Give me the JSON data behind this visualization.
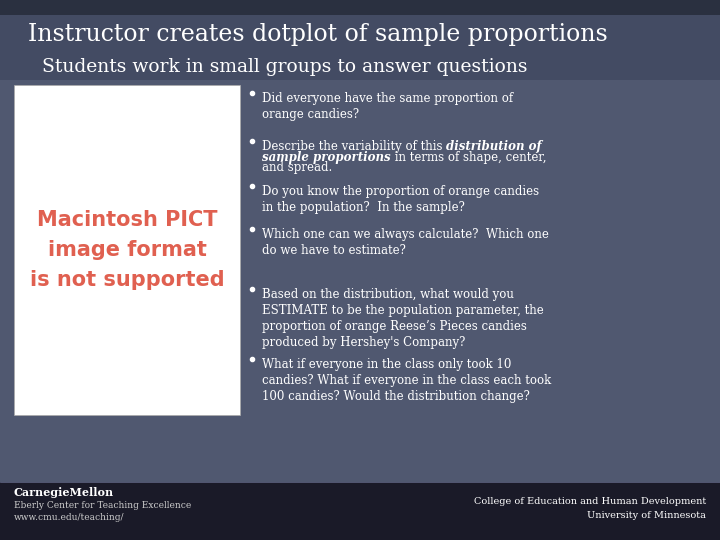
{
  "title": "Instructor creates dotplot of sample proportions",
  "subtitle": "Students work in small groups to answer questions",
  "bg_main": "#505870",
  "bg_top_strip": "#454d65",
  "footer_bg": "#1e1e2e",
  "title_color": "#ffffff",
  "subtitle_color": "#ffffff",
  "bullet_color": "#ffffff",
  "image_placeholder_bg": "#ffffff",
  "image_placeholder_text_color": "#e06050",
  "image_placeholder_text": "Macintosh PICT\nimage format\nis not supported",
  "footer_left_line1": "CarnegieMellon",
  "footer_left_line2": "Eberly Center for Teaching Excellence",
  "footer_left_line3": "www.cmu.edu/teaching/",
  "footer_right_line1": "College of Education and Human Development",
  "footer_right_line2": "University of Minnesota",
  "bullet1": "Did everyone have the same proportion of\norange candies?",
  "bullet2_pre": "Describe the variability of this ",
  "bullet2_bold": "distribution of\nsample proportions",
  "bullet2_post": " in terms of shape, center,\nand spread.",
  "bullet3": "Do you know the proportion of orange candies\nin the population?  In the sample?",
  "bullet4": "Which one can we always calculate?  Which one\ndo we have to estimate?",
  "bullet5": "Based on the distribution, what would you\nESTIMATE to be the population parameter, the\nproportion of orange Reese’s Pieces candies\nproduced by Hershey's Company?",
  "bullet6": "What if everyone in the class only took 10\ncandies? What if everyone in the class each took\n100 candies? Would the distribution change?"
}
